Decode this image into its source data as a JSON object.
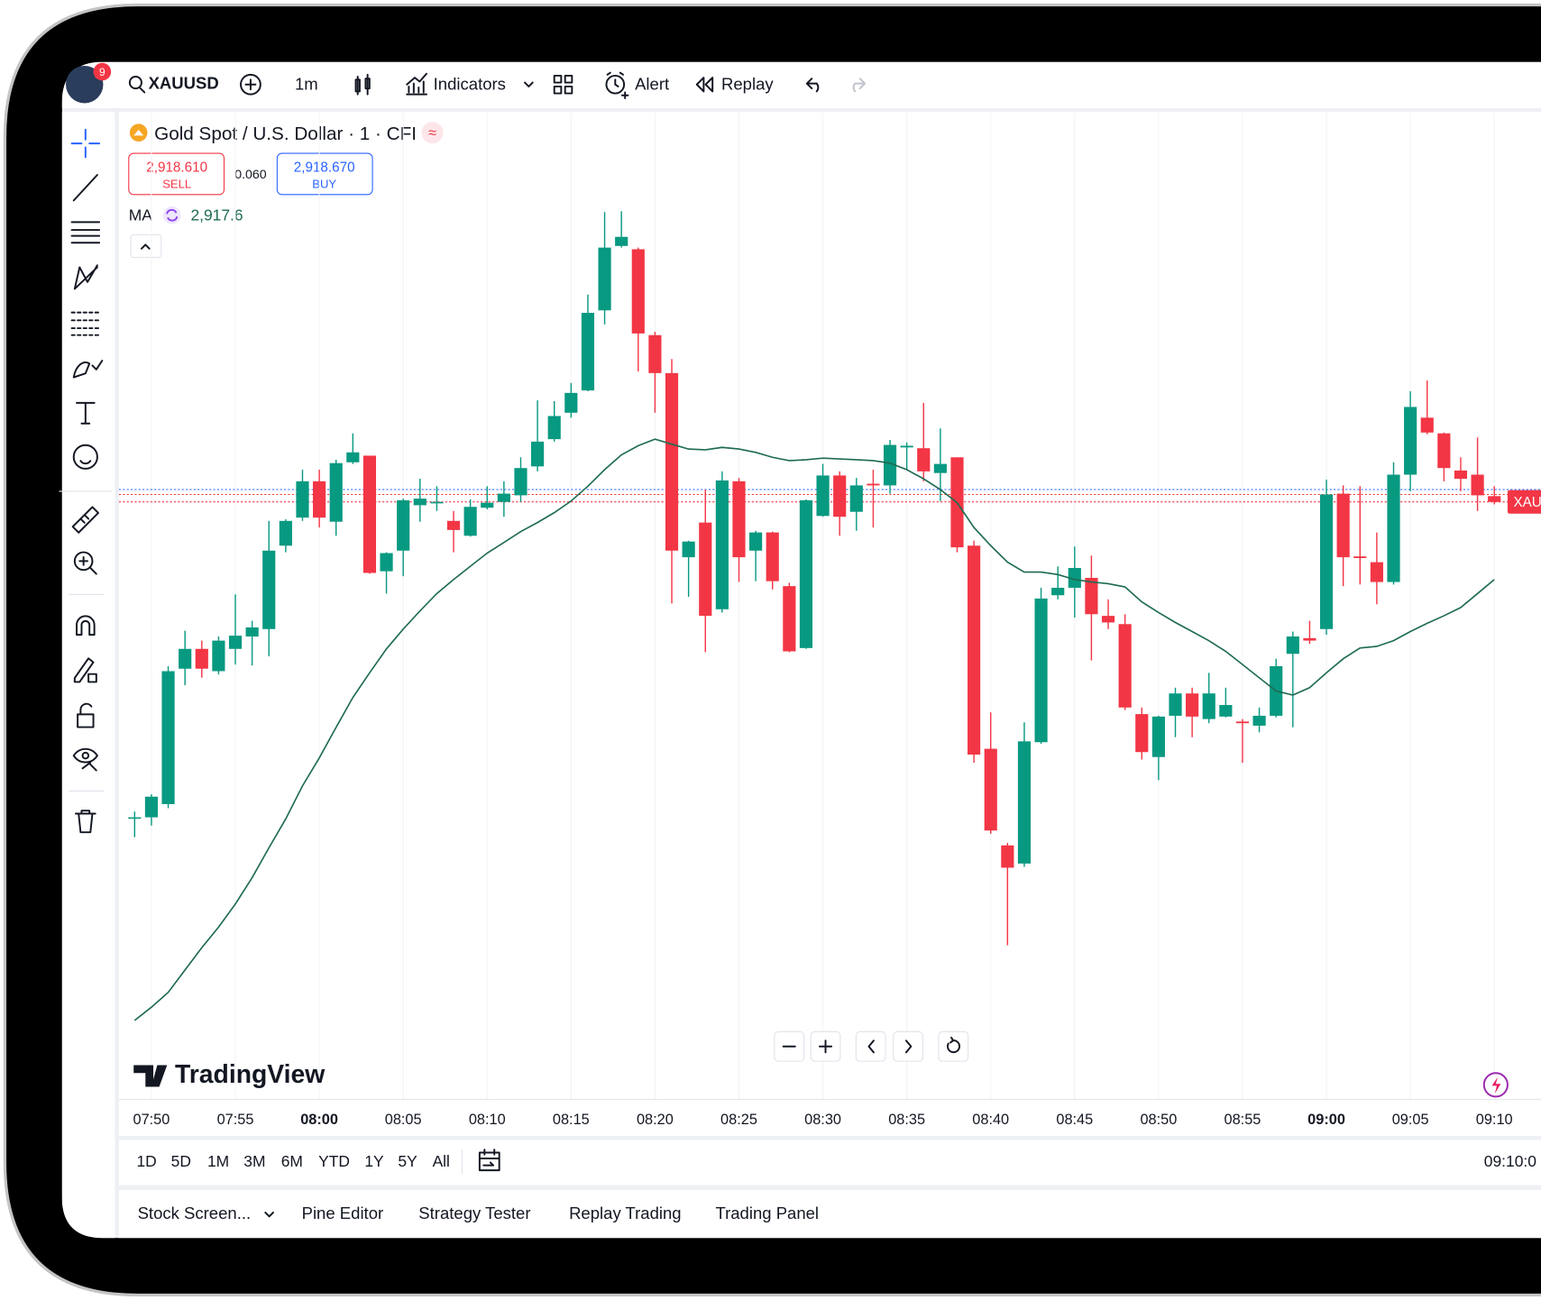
{
  "toolbar": {
    "badge": "9",
    "symbol": "XAUUSD",
    "interval": "1m",
    "indicators": "Indicators",
    "alert": "Alert",
    "replay": "Replay"
  },
  "chart_data": {
    "type": "candlestick",
    "title": "Gold Spot / U.S. Dollar · 1 · CFI",
    "sell": {
      "value": 2918.61,
      "label": "2,918.610",
      "name": "SELL"
    },
    "spread": "0.060",
    "buy": {
      "value": 2918.67,
      "label": "2,918.670",
      "name": "BUY"
    },
    "price_tag": "XAU",
    "up_color": "#089981",
    "down_color": "#f23645",
    "grid": true,
    "ylim": [
      2911.27,
      2923.23
    ],
    "categories": [
      null,
      "07:50",
      null,
      null,
      null,
      null,
      "07:55",
      null,
      null,
      null,
      null,
      "08:00",
      null,
      null,
      null,
      null,
      "08:05",
      null,
      null,
      null,
      null,
      "08:10",
      null,
      null,
      null,
      null,
      "08:15",
      null,
      null,
      null,
      null,
      "08:20",
      null,
      null,
      null,
      null,
      "08:25",
      null,
      null,
      null,
      null,
      "08:30",
      null,
      null,
      null,
      null,
      "08:35",
      null,
      null,
      null,
      null,
      "08:40",
      null,
      null,
      null,
      null,
      "08:45",
      null,
      null,
      null,
      null,
      "08:50",
      null,
      null,
      null,
      null,
      "08:55",
      null,
      null,
      null,
      null,
      "09:00",
      null,
      null,
      null,
      null,
      "09:05",
      null,
      null,
      null,
      null,
      "09:10"
    ],
    "open": [
      2914.7,
      2914.7,
      2914.86,
      2916.5,
      2916.74,
      2916.47,
      2916.74,
      2916.89,
      2916.98,
      2917.99,
      2918.33,
      2918.77,
      2918.28,
      2919.0,
      2919.08,
      2917.68,
      2917.93,
      2918.48,
      2918.52,
      2918.29,
      2918.11,
      2918.45,
      2918.52,
      2918.6,
      2918.95,
      2919.28,
      2919.6,
      2919.87,
      2920.84,
      2921.62,
      2921.58,
      2920.54,
      2920.08,
      2917.85,
      2918.27,
      2917.22,
      2918.77,
      2917.93,
      2918.15,
      2917.5,
      2916.75,
      2918.35,
      2918.84,
      2918.4,
      2918.74,
      2918.72,
      2919.18,
      2919.17,
      2918.87,
      2919.06,
      2917.99,
      2915.53,
      2914.36,
      2914.14,
      2915.61,
      2917.39,
      2917.48,
      2917.6,
      2917.14,
      2917.04,
      2915.95,
      2915.43,
      2915.93,
      2916.2,
      2915.89,
      2915.92,
      2915.86,
      2915.81,
      2915.93,
      2916.68,
      2916.87,
      2916.98,
      2918.62,
      2917.86,
      2917.79,
      2917.55,
      2918.85,
      2919.54,
      2919.35,
      2918.9,
      2918.85,
      2918.59
    ],
    "high": [
      2914.77,
      2914.98,
      2916.53,
      2916.96,
      2916.84,
      2916.89,
      2917.4,
      2917.08,
      2918.29,
      2918.31,
      2918.91,
      2918.91,
      2919.03,
      2919.35,
      2919.08,
      2917.91,
      2918.56,
      2918.8,
      2918.71,
      2918.41,
      2918.55,
      2918.71,
      2918.77,
      2919.06,
      2919.75,
      2919.74,
      2919.96,
      2921.03,
      2922.03,
      2922.04,
      2921.6,
      2920.58,
      2920.25,
      2918.05,
      2918.67,
      2918.89,
      2918.81,
      2918.17,
      2918.16,
      2917.54,
      2918.55,
      2918.98,
      2918.89,
      2918.81,
      2918.91,
      2919.27,
      2919.24,
      2919.72,
      2919.41,
      2919.06,
      2918.05,
      2915.97,
      2914.39,
      2915.85,
      2917.48,
      2917.74,
      2917.98,
      2917.87,
      2917.34,
      2917.16,
      2916.03,
      2915.93,
      2916.27,
      2916.27,
      2916.45,
      2916.27,
      2915.89,
      2916.03,
      2916.62,
      2916.95,
      2917.08,
      2918.79,
      2918.72,
      2918.71,
      2918.15,
      2919.0,
      2919.86,
      2919.99,
      2919.36,
      2919.06,
      2919.3,
      2918.71
    ],
    "low": [
      2914.46,
      2914.6,
      2914.81,
      2916.3,
      2916.39,
      2916.43,
      2916.55,
      2916.54,
      2916.65,
      2917.91,
      2918.29,
      2918.21,
      2918.11,
      2918.98,
      2917.65,
      2917.41,
      2917.62,
      2918.28,
      2918.41,
      2917.91,
      2918.1,
      2918.43,
      2918.34,
      2918.52,
      2918.89,
      2919.25,
      2919.54,
      2919.86,
      2920.67,
      2921.6,
      2920.1,
      2919.6,
      2917.29,
      2917.37,
      2916.7,
      2917.18,
      2917.55,
      2917.56,
      2917.46,
      2916.7,
      2916.74,
      2918.34,
      2918.11,
      2918.17,
      2918.21,
      2918.62,
      2918.91,
      2918.77,
      2918.53,
      2917.91,
      2915.36,
      2914.5,
      2913.15,
      2914.1,
      2915.59,
      2917.34,
      2917.12,
      2916.6,
      2916.98,
      2916.0,
      2915.4,
      2915.15,
      2915.67,
      2915.67,
      2915.84,
      2915.91,
      2915.36,
      2915.73,
      2915.91,
      2915.79,
      2916.8,
      2916.91,
      2917.5,
      2917.52,
      2917.28,
      2917.52,
      2918.65,
      2919.34,
      2918.77,
      2918.65,
      2918.41,
      2918.49
    ],
    "close": [
      2914.7,
      2914.95,
      2916.47,
      2916.74,
      2916.5,
      2916.84,
      2916.9,
      2917.0,
      2917.93,
      2918.29,
      2918.77,
      2918.33,
      2918.99,
      2919.12,
      2917.66,
      2917.9,
      2918.54,
      2918.56,
      2918.52,
      2918.18,
      2918.46,
      2918.51,
      2918.62,
      2918.93,
      2919.25,
      2919.56,
      2919.84,
      2920.81,
      2921.6,
      2921.73,
      2920.56,
      2920.08,
      2917.93,
      2918.04,
      2917.14,
      2918.78,
      2917.85,
      2918.15,
      2917.56,
      2916.71,
      2918.54,
      2918.84,
      2918.34,
      2918.72,
      2918.72,
      2919.21,
      2919.2,
      2918.89,
      2918.98,
      2917.97,
      2915.46,
      2914.54,
      2914.09,
      2915.62,
      2917.35,
      2917.48,
      2917.72,
      2917.16,
      2917.06,
      2916.03,
      2915.49,
      2915.92,
      2916.2,
      2915.92,
      2916.2,
      2916.06,
      2915.84,
      2915.93,
      2916.53,
      2916.89,
      2916.84,
      2918.61,
      2917.85,
      2917.84,
      2917.55,
      2918.85,
      2919.67,
      2919.36,
      2918.93,
      2918.8,
      2918.6,
      2918.52
    ],
    "ma": {
      "name": "MA",
      "color": "#1e6b52",
      "value_label": "2,917.6",
      "values": [
        2912.24,
        2912.4,
        2912.58,
        2912.85,
        2913.12,
        2913.37,
        2913.65,
        2913.97,
        2914.33,
        2914.68,
        2915.08,
        2915.42,
        2915.79,
        2916.15,
        2916.45,
        2916.74,
        2916.98,
        2917.2,
        2917.41,
        2917.58,
        2917.74,
        2917.9,
        2918.03,
        2918.16,
        2918.27,
        2918.39,
        2918.53,
        2918.71,
        2918.91,
        2919.09,
        2919.2,
        2919.28,
        2919.22,
        2919.16,
        2919.15,
        2919.18,
        2919.16,
        2919.12,
        2919.06,
        2919.02,
        2919.03,
        2919.05,
        2919.04,
        2919.03,
        2919.02,
        2918.99,
        2918.91,
        2918.8,
        2918.67,
        2918.51,
        2918.21,
        2917.99,
        2917.79,
        2917.67,
        2917.67,
        2917.64,
        2917.58,
        2917.55,
        2917.53,
        2917.49,
        2917.31,
        2917.18,
        2917.06,
        2916.95,
        2916.84,
        2916.71,
        2916.55,
        2916.39,
        2916.23,
        2916.18,
        2916.27,
        2916.45,
        2916.62,
        2916.75,
        2916.77,
        2916.84,
        2916.95,
        2917.05,
        2917.14,
        2917.24,
        2917.41,
        2917.58
      ]
    }
  },
  "logo": "TradingView",
  "ranges": [
    "1D",
    "5D",
    "1M",
    "3M",
    "6M",
    "YTD",
    "1Y",
    "5Y",
    "All"
  ],
  "clock": "09:10:0",
  "tabs": [
    "Stock Screen...",
    "Pine Editor",
    "Strategy Tester",
    "Replay Trading",
    "Trading Panel"
  ]
}
